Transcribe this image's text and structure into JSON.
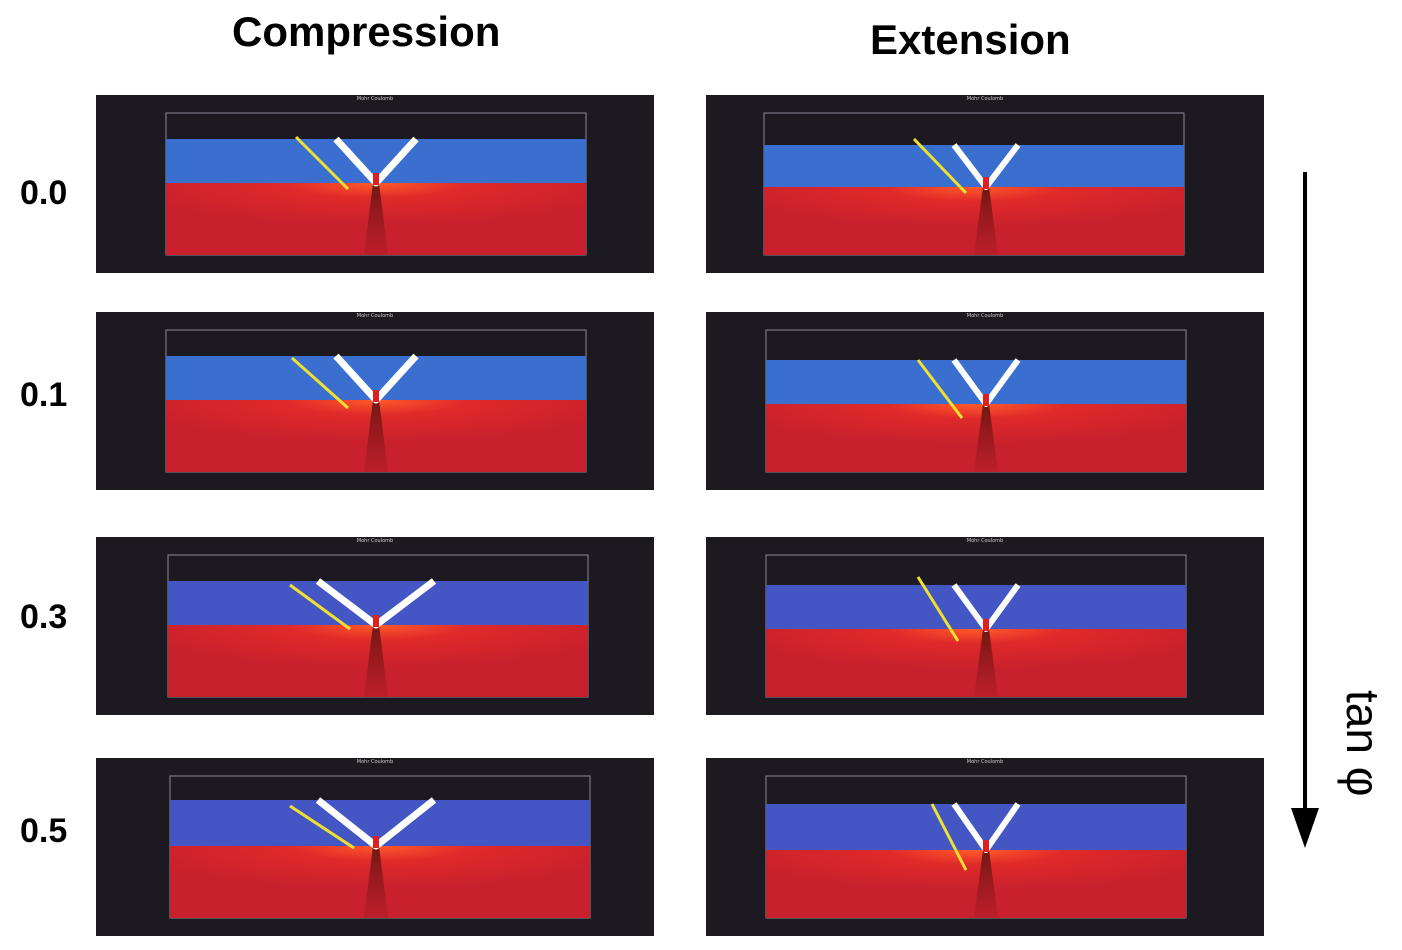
{
  "columns": [
    {
      "title": "Compression",
      "key": "compression"
    },
    {
      "title": "Extension",
      "key": "extension"
    }
  ],
  "rows": [
    {
      "label": "0.0"
    },
    {
      "label": "0.1"
    },
    {
      "label": "0.3"
    },
    {
      "label": "0.5"
    }
  ],
  "panel_caption": "Mohr Coulomb",
  "arrow_label": "tan φ",
  "colors": {
    "background": "#1c1a20",
    "upper_layer": "#3a6fd0",
    "lower_layer": "#c8202c",
    "shear_band": "#ffffff",
    "reference_line": "#f0e030"
  }
}
